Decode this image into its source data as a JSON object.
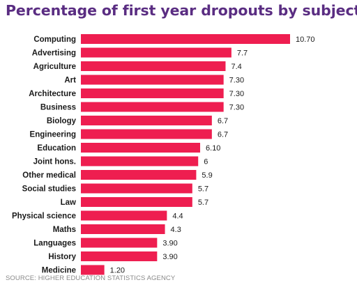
{
  "title": "Percentage of first year dropouts by subject",
  "source": "SOURCE: HIGHER EDUCATION STATISTICS AGENCY",
  "colors": {
    "bar": "#ee1e50",
    "title": "#5a2d82",
    "label": "#1a1a1a",
    "source": "#8a8a8a"
  },
  "chart_data": {
    "type": "bar",
    "orientation": "horizontal",
    "title": "Percentage of first year dropouts by subject",
    "xlabel": "",
    "ylabel": "",
    "grid": false,
    "xlim": [
      0,
      10.7
    ],
    "categories": [
      "Computing",
      "Advertising",
      "Agriculture",
      "Art",
      "Architecture",
      "Business",
      "Biology",
      "Engineering",
      "Education",
      "Joint hons.",
      "Other medical",
      "Social studies",
      "Law",
      "Physical science",
      "Maths",
      "Languages",
      "History",
      "Medicine"
    ],
    "values": [
      10.7,
      7.7,
      7.4,
      7.3,
      7.3,
      7.3,
      6.7,
      6.7,
      6.1,
      6,
      5.9,
      5.7,
      5.7,
      4.4,
      4.3,
      3.9,
      3.9,
      1.2
    ],
    "value_labels": [
      "10.70",
      "7.7",
      "7.4",
      "7.30",
      "7.30",
      "7.30",
      "6.7",
      "6.7",
      "6.10",
      "6",
      "5.9",
      "5.7",
      "5.7",
      "4.4",
      "4.3",
      "3.90",
      "3.90",
      "1.20"
    ]
  }
}
